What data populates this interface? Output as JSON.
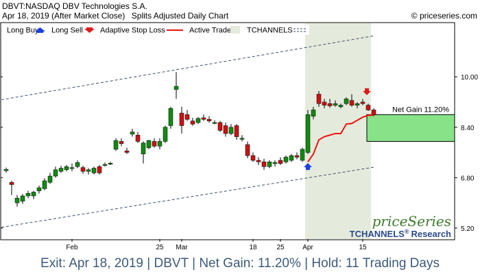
{
  "header": {
    "title": "DBVT:NASDAQ DBV Technologies S.A.",
    "date_label": "Apr 18, 2019 (After Market Close)",
    "adjust_label": "Splits Adjusted Daily Chart",
    "copyright": "© priceseries.com"
  },
  "legend": {
    "long_buy": "Long Buy",
    "long_sell": "Long Sell",
    "adaptive_stop_loss": "Adaptive Stop Loss",
    "active_trade": "Active Trade",
    "tchannels": "TCHANNELS"
  },
  "colors": {
    "up_candle": "#118a11",
    "down_candle": "#cc1111",
    "buy_arrow": "#1a3fe0",
    "sell_arrow": "#e01a1a",
    "stop_line": "#ee1111",
    "active_trade_bg": "#e5ebdc",
    "gain_box": "#88e288",
    "channel": "#3d4f66",
    "footer_text": "#3d5a7a",
    "brand_green": "#3d7a2a",
    "brand_blue": "#2a4a8a"
  },
  "branding": {
    "logo": "priceSeries",
    "tchannels": "TCHANNELS",
    "reg": "®",
    "research": "Research"
  },
  "net_gain_label": "Net Gain 11.20%",
  "footer": "Exit: Apr 18, 2019 | DBVT | Net Gain: 11.20% | Hold: 11 Trading Days",
  "chart_data": {
    "type": "candlestick",
    "y_ticks": [
      5.2,
      6.8,
      8.4,
      10.0
    ],
    "y_tick_labels": [
      "5.20",
      "6.80",
      "8.40",
      "10.00"
    ],
    "ylim": [
      4.85,
      11.7
    ],
    "x_ticks": [
      {
        "label": "Feb",
        "index": 12
      },
      {
        "label": "25",
        "index": 28
      },
      {
        "label": "Mar",
        "index": 32
      },
      {
        "label": "18",
        "index": 45
      },
      {
        "label": "25",
        "index": 50
      },
      {
        "label": "Apr",
        "index": 55
      },
      {
        "label": "15",
        "index": 65
      }
    ],
    "candles": [
      {
        "o": 7.02,
        "h": 7.12,
        "l": 6.96,
        "c": 7.06
      },
      {
        "o": 6.65,
        "h": 6.7,
        "l": 6.25,
        "c": 6.58
      },
      {
        "o": 6.0,
        "h": 6.25,
        "l": 5.88,
        "c": 6.15
      },
      {
        "o": 6.05,
        "h": 6.28,
        "l": 5.97,
        "c": 6.22
      },
      {
        "o": 6.22,
        "h": 6.38,
        "l": 6.15,
        "c": 6.3
      },
      {
        "o": 6.22,
        "h": 6.38,
        "l": 6.12,
        "c": 6.34
      },
      {
        "o": 6.38,
        "h": 6.55,
        "l": 6.3,
        "c": 6.48
      },
      {
        "o": 6.45,
        "h": 6.78,
        "l": 6.4,
        "c": 6.7
      },
      {
        "o": 6.65,
        "h": 6.95,
        "l": 6.6,
        "c": 6.85
      },
      {
        "o": 6.85,
        "h": 7.15,
        "l": 6.8,
        "c": 7.05
      },
      {
        "o": 7.0,
        "h": 7.18,
        "l": 6.95,
        "c": 7.1
      },
      {
        "o": 7.05,
        "h": 7.2,
        "l": 7.0,
        "c": 7.15
      },
      {
        "o": 7.1,
        "h": 7.25,
        "l": 7.0,
        "c": 7.12
      },
      {
        "o": 7.15,
        "h": 7.35,
        "l": 7.1,
        "c": 7.28
      },
      {
        "o": 7.12,
        "h": 7.18,
        "l": 6.92,
        "c": 7.0
      },
      {
        "o": 7.0,
        "h": 7.1,
        "l": 6.9,
        "c": 7.05
      },
      {
        "o": 6.95,
        "h": 7.15,
        "l": 6.9,
        "c": 7.1
      },
      {
        "o": 7.15,
        "h": 7.2,
        "l": 6.9,
        "c": 6.95
      },
      {
        "o": 7.2,
        "h": 7.28,
        "l": 7.15,
        "c": 7.22
      },
      {
        "o": 7.25,
        "h": 7.3,
        "l": 7.2,
        "c": 7.26
      },
      {
        "o": 7.7,
        "h": 8.05,
        "l": 7.65,
        "c": 7.98
      },
      {
        "o": 7.95,
        "h": 8.05,
        "l": 7.8,
        "c": 7.88
      },
      {
        "o": 7.65,
        "h": 7.75,
        "l": 7.55,
        "c": 7.6
      },
      {
        "o": 8.18,
        "h": 8.35,
        "l": 8.1,
        "c": 8.25
      },
      {
        "o": 8.15,
        "h": 8.25,
        "l": 7.9,
        "c": 7.95
      },
      {
        "o": 7.55,
        "h": 7.95,
        "l": 7.25,
        "c": 7.9
      },
      {
        "o": 7.75,
        "h": 8.0,
        "l": 7.7,
        "c": 7.98
      },
      {
        "o": 7.95,
        "h": 8.05,
        "l": 7.75,
        "c": 7.8
      },
      {
        "o": 7.8,
        "h": 8.05,
        "l": 7.7,
        "c": 7.95
      },
      {
        "o": 7.95,
        "h": 8.45,
        "l": 7.9,
        "c": 8.4
      },
      {
        "o": 8.45,
        "h": 9.05,
        "l": 8.35,
        "c": 9.0
      },
      {
        "o": 9.6,
        "h": 10.15,
        "l": 9.3,
        "c": 9.7
      },
      {
        "o": 8.85,
        "h": 9.05,
        "l": 8.2,
        "c": 8.45
      },
      {
        "o": 8.8,
        "h": 8.95,
        "l": 8.6,
        "c": 8.65
      },
      {
        "o": 8.6,
        "h": 8.7,
        "l": 8.45,
        "c": 8.5
      },
      {
        "o": 8.55,
        "h": 8.72,
        "l": 8.5,
        "c": 8.68
      },
      {
        "o": 8.7,
        "h": 8.8,
        "l": 8.6,
        "c": 8.65
      },
      {
        "o": 8.65,
        "h": 8.75,
        "l": 8.55,
        "c": 8.6
      },
      {
        "o": 8.55,
        "h": 8.62,
        "l": 8.5,
        "c": 8.55
      },
      {
        "o": 8.55,
        "h": 8.6,
        "l": 8.25,
        "c": 8.3
      },
      {
        "o": 8.45,
        "h": 8.55,
        "l": 8.1,
        "c": 8.2
      },
      {
        "o": 8.2,
        "h": 8.5,
        "l": 8.15,
        "c": 8.4
      },
      {
        "o": 8.45,
        "h": 8.5,
        "l": 8.0,
        "c": 8.1
      },
      {
        "o": 8.05,
        "h": 8.15,
        "l": 7.95,
        "c": 8.05
      },
      {
        "o": 7.85,
        "h": 7.95,
        "l": 7.42,
        "c": 7.5
      },
      {
        "o": 7.5,
        "h": 7.6,
        "l": 7.3,
        "c": 7.35
      },
      {
        "o": 7.35,
        "h": 7.45,
        "l": 7.2,
        "c": 7.3
      },
      {
        "o": 7.3,
        "h": 7.4,
        "l": 7.05,
        "c": 7.15
      },
      {
        "o": 7.15,
        "h": 7.35,
        "l": 7.1,
        "c": 7.3
      },
      {
        "o": 7.25,
        "h": 7.35,
        "l": 7.15,
        "c": 7.28
      },
      {
        "o": 7.35,
        "h": 7.45,
        "l": 7.2,
        "c": 7.25
      },
      {
        "o": 7.3,
        "h": 7.5,
        "l": 7.25,
        "c": 7.45
      },
      {
        "o": 7.35,
        "h": 7.55,
        "l": 7.3,
        "c": 7.5
      },
      {
        "o": 7.5,
        "h": 7.6,
        "l": 7.38,
        "c": 7.45
      },
      {
        "o": 7.35,
        "h": 7.75,
        "l": 7.3,
        "c": 7.7
      },
      {
        "o": 7.6,
        "h": 8.95,
        "l": 7.55,
        "c": 8.8
      },
      {
        "o": 8.75,
        "h": 9.05,
        "l": 8.65,
        "c": 8.95
      },
      {
        "o": 9.45,
        "h": 9.55,
        "l": 9.05,
        "c": 9.15
      },
      {
        "o": 9.2,
        "h": 9.3,
        "l": 9.0,
        "c": 9.1
      },
      {
        "o": 9.15,
        "h": 9.3,
        "l": 9.02,
        "c": 9.08
      },
      {
        "o": 9.1,
        "h": 9.25,
        "l": 9.05,
        "c": 9.15
      },
      {
        "o": 9.05,
        "h": 9.15,
        "l": 9.0,
        "c": 9.1
      },
      {
        "o": 9.15,
        "h": 9.35,
        "l": 9.1,
        "c": 9.3
      },
      {
        "o": 9.25,
        "h": 9.45,
        "l": 9.05,
        "c": 9.1
      },
      {
        "o": 9.1,
        "h": 9.2,
        "l": 9.0,
        "c": 9.15
      },
      {
        "o": 9.2,
        "h": 9.3,
        "l": 9.1,
        "c": 9.15
      },
      {
        "o": 9.1,
        "h": 9.15,
        "l": 8.92,
        "c": 8.95
      },
      {
        "o": 8.95,
        "h": 9.0,
        "l": 8.75,
        "c": 8.8
      }
    ],
    "buy_index": 55,
    "sell_index": 66,
    "buy_marker_price": 7.13,
    "sell_marker_price": 9.55,
    "active_trade_range": [
      55,
      66
    ],
    "stop_loss": [
      {
        "i": 55,
        "v": 7.3
      },
      {
        "i": 56,
        "v": 7.55
      },
      {
        "i": 57,
        "v": 8.0
      },
      {
        "i": 58,
        "v": 8.1
      },
      {
        "i": 59,
        "v": 8.15
      },
      {
        "i": 60,
        "v": 8.2
      },
      {
        "i": 61,
        "v": 8.2
      },
      {
        "i": 62,
        "v": 8.5
      },
      {
        "i": 63,
        "v": 8.52
      },
      {
        "i": 64,
        "v": 8.62
      },
      {
        "i": 65,
        "v": 8.72
      },
      {
        "i": 66,
        "v": 8.78
      },
      {
        "i": 67,
        "v": 8.78
      }
    ],
    "channel_upper": [
      {
        "i": 0,
        "v": 9.3
      },
      {
        "i": 67,
        "v": 11.3
      }
    ],
    "channel_lower": [
      {
        "i": 0,
        "v": 5.25
      },
      {
        "i": 67,
        "v": 7.13
      }
    ],
    "net_gain_box": {
      "from": 7.95,
      "to": 8.8
    }
  }
}
